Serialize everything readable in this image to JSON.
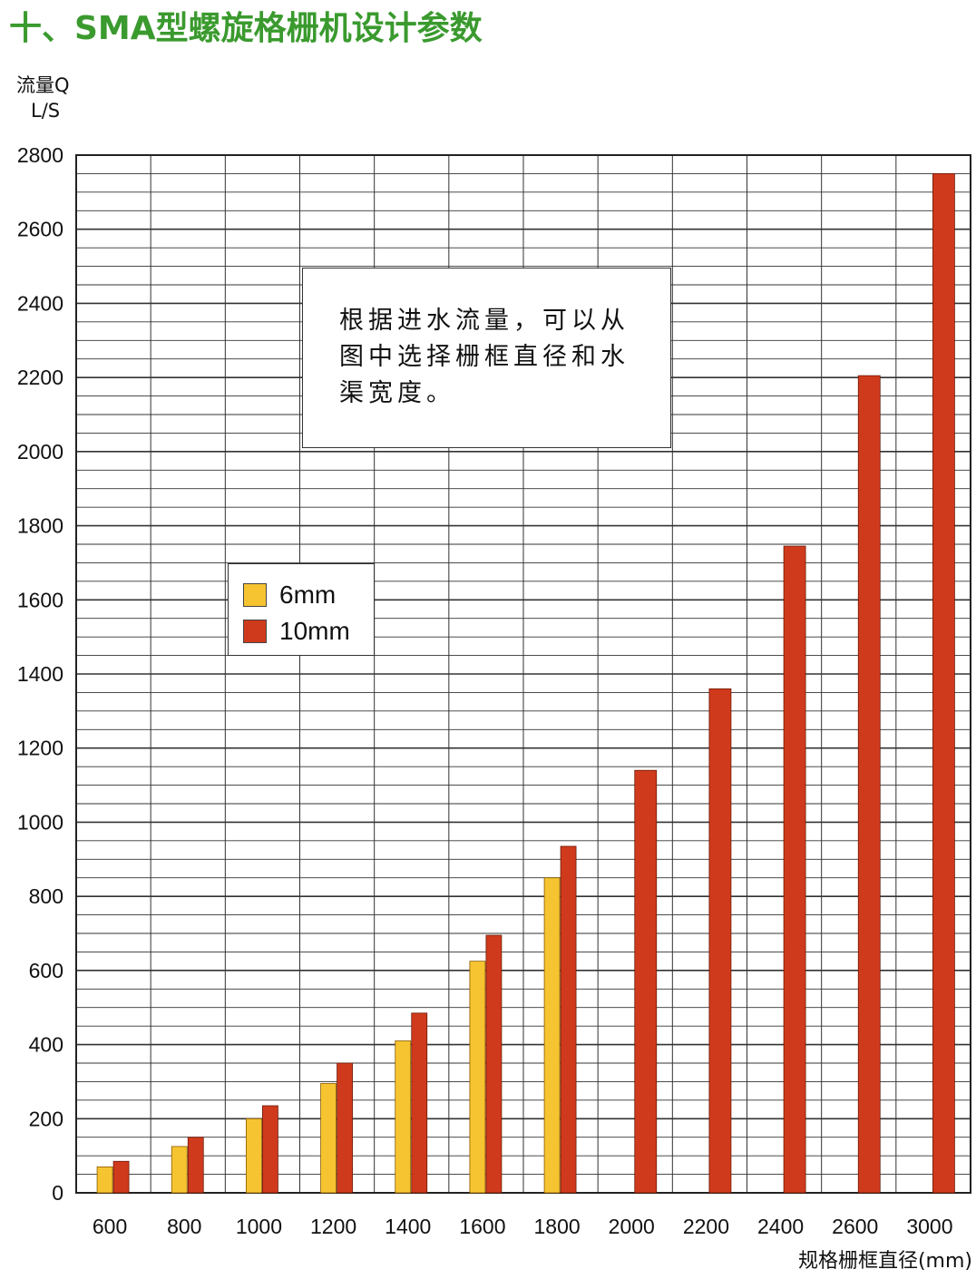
{
  "title": "十、SMA型螺旋格栅机设计参数",
  "note": "根据进水流量，可以从图中选择栅框直径和水渠宽度。",
  "colors": {
    "title": "#3a9a2e",
    "s6mm": "#f7c431",
    "s10mm": "#d03a1c",
    "grid": "#333333"
  },
  "chart_data": {
    "type": "bar",
    "ylabel_line1": "流量Q",
    "ylabel_line2": "L/S",
    "xlabel": "规格栅框直径(mm)",
    "ylim": [
      0,
      2800
    ],
    "yticks": [
      0,
      200,
      400,
      600,
      800,
      1000,
      1200,
      1400,
      1600,
      1800,
      2000,
      2200,
      2400,
      2600,
      2800
    ],
    "grid": true,
    "legend_position": "middle-left",
    "categories": [
      "600",
      "800",
      "1000",
      "1200",
      "1400",
      "1600",
      "1800",
      "2000",
      "2200",
      "2400",
      "2600",
      "3000"
    ],
    "series": [
      {
        "name": "6mm",
        "values": [
          70,
          125,
          200,
          295,
          410,
          625,
          850,
          null,
          null,
          null,
          null,
          null
        ]
      },
      {
        "name": "10mm",
        "values": [
          85,
          150,
          235,
          350,
          485,
          695,
          935,
          1140,
          1360,
          1745,
          2205,
          2750
        ]
      }
    ]
  }
}
